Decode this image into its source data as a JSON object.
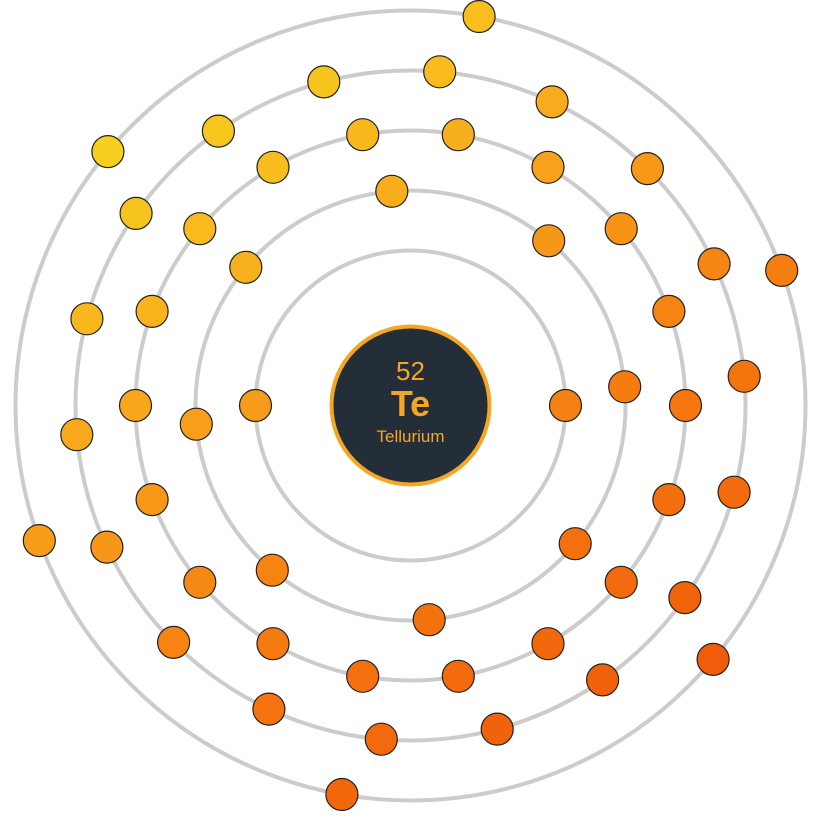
{
  "atom": {
    "atomic_number": "52",
    "symbol": "Te",
    "name": "Tellurium",
    "electrons_per_shell": [
      2,
      8,
      18,
      18,
      6
    ]
  },
  "colors": {
    "nucleus_fill": "#232e38",
    "nucleus_border": "#f5a623",
    "nucleus_text": "#f5a623",
    "shell_ring": "#cccccc",
    "electron_outline": "#222222",
    "electron_gradient": [
      "#f7d21e",
      "#f8a31c",
      "#f5780f",
      "#f05a0a"
    ]
  }
}
